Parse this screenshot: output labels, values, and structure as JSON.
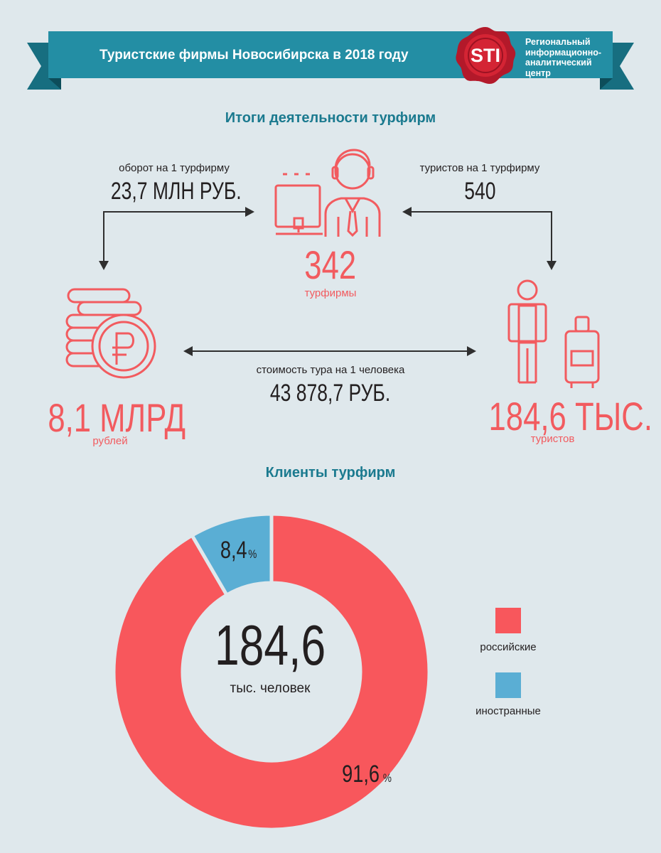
{
  "header": {
    "title": "Туристские фирмы Новосибирска в 2018 году",
    "logo_text": "STI",
    "org_lines": [
      "Региональный",
      "информационно-",
      "аналитический",
      "центр"
    ]
  },
  "activity": {
    "title": "Итоги деятельности турфирм",
    "turnover_label": "оборот на 1 турфирму",
    "turnover_value": "23,7 млн руб.",
    "tourists_per_firm_label": "туристов на 1 турфирму",
    "tourists_per_firm_value": "540",
    "firms_value": "342",
    "firms_label": "турфирмы",
    "revenue_value": "8,1 млрд",
    "revenue_label": "рублей",
    "cost_label": "стоимость тура на 1 человека",
    "cost_value": "43 878,7 руб.",
    "tourists_value": "184,6 тыс.",
    "tourists_label": "туристов"
  },
  "clients": {
    "title": "Клиенты турфирм",
    "center_value": "184,6",
    "center_unit": "тыс. человек"
  },
  "chart_data": {
    "type": "pie",
    "categories": [
      "российские",
      "иностранные"
    ],
    "values": [
      91.6,
      8.4
    ],
    "value_labels": [
      "91,6",
      "8,4"
    ],
    "unit": "%",
    "colors": [
      "#f8575c",
      "#5aaed4"
    ],
    "legend_placement": "right"
  }
}
